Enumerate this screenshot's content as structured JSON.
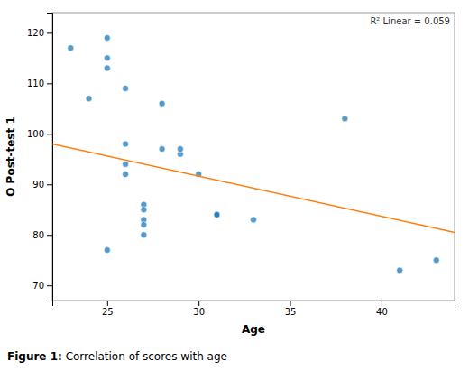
{
  "chart_data": {
    "type": "scatter",
    "xlabel": "Age",
    "ylabel": "O Post-test 1",
    "annotations": [
      "R² Linear = 0.059"
    ],
    "caption": [
      "Figure 1:",
      " Correlation of scores with age"
    ],
    "series": [
      {
        "type": "scatter",
        "x": [
          23,
          24,
          25,
          25,
          25,
          25,
          26,
          26,
          26,
          26,
          27,
          27,
          27,
          27,
          27,
          28,
          28,
          29,
          29,
          30,
          31,
          31,
          33,
          38,
          41,
          43
        ],
        "values": [
          117,
          107,
          119,
          115,
          113,
          77,
          109,
          98,
          94,
          92,
          86,
          83,
          85,
          82,
          80,
          106,
          97,
          96,
          97,
          92,
          84,
          84,
          83,
          103,
          73,
          75
        ]
      },
      {
        "type": "line",
        "x": [
          22,
          44
        ],
        "values": [
          98.0,
          80.5
        ]
      }
    ],
    "xlim": [
      22,
      44
    ],
    "ylim": [
      67,
      124
    ],
    "xticks": [
      25,
      30,
      35,
      40
    ],
    "yticks": [
      70,
      80,
      90,
      100,
      110,
      120
    ],
    "grid": false
  }
}
